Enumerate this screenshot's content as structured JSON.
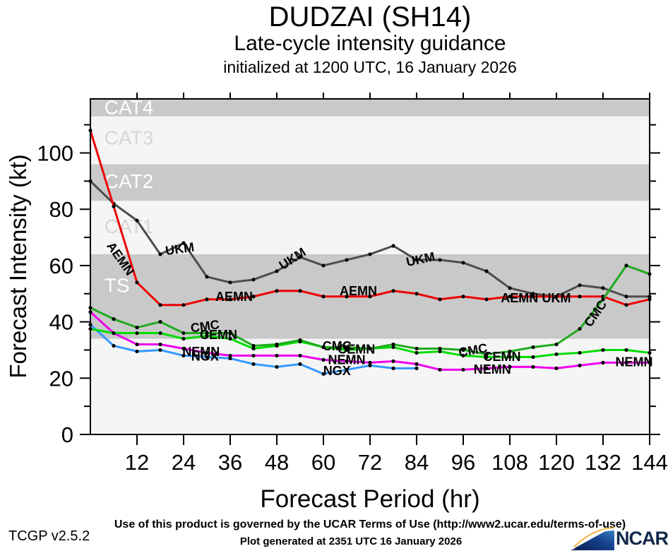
{
  "header": {
    "title": "DUDZAI (SH14)",
    "subtitle": "Late-cycle intensity guidance",
    "init_line": "initialized at 1200 UTC, 16 January 2026"
  },
  "chart_data": {
    "type": "line",
    "title": "DUDZAI (SH14) late-cycle intensity guidance",
    "xlabel": "Forecast Period (hr)",
    "ylabel": "Forecast Intensity (kt)",
    "xlim": [
      0,
      144
    ],
    "ylim": [
      0,
      119.2
    ],
    "x_ticks": [
      12,
      24,
      36,
      48,
      60,
      72,
      84,
      96,
      108,
      120,
      132,
      144
    ],
    "y_ticks_major": [
      0,
      20,
      40,
      60,
      80,
      100
    ],
    "y_ticks_minor": [
      10,
      30,
      50,
      70,
      90,
      110
    ],
    "grid": "off",
    "plot_bg": "#f5f5f5",
    "marker_color": "#000000",
    "bands": [
      {
        "label": "TS",
        "from": 34,
        "to": 64,
        "fill": "#c9c9c9",
        "label_color": "#ffffff",
        "label_y": 53
      },
      {
        "label": "CAT1",
        "from": 64,
        "to": 83,
        "fill": "#f5f5f5",
        "label_color": "#d6d6d6",
        "label_y": 74
      },
      {
        "label": "CAT2",
        "from": 83,
        "to": 96,
        "fill": "#c9c9c9",
        "label_color": "#ffffff",
        "label_y": 90
      },
      {
        "label": "CAT3",
        "from": 96,
        "to": 113,
        "fill": "#f5f5f5",
        "label_color": "#d6d6d6",
        "label_y": 105.5
      },
      {
        "label": "CAT4",
        "from": 113,
        "to": 119.2,
        "fill": "#c9c9c9",
        "label_color": "#ffffff",
        "label_y": 116.3
      }
    ],
    "x_hours": [
      0,
      6,
      12,
      18,
      24,
      30,
      36,
      42,
      48,
      54,
      60,
      66,
      72,
      78,
      84,
      90,
      96,
      102,
      108,
      114,
      120,
      126,
      132,
      138,
      144
    ],
    "series": [
      {
        "name": "UKM",
        "color": "#4d4d4d",
        "values": [
          90,
          82,
          76,
          64,
          68,
          56,
          54,
          55,
          58,
          63,
          60,
          62,
          64,
          67,
          62,
          62,
          61,
          58,
          52,
          50,
          49,
          53,
          52,
          49,
          49
        ]
      },
      {
        "name": "AEMN",
        "color": "#ee0000",
        "values": [
          108,
          81,
          54,
          46,
          46,
          48,
          48,
          49,
          51,
          51,
          49,
          49,
          49,
          51,
          50,
          48,
          49,
          48,
          49,
          49,
          49,
          49,
          49,
          46,
          48
        ]
      },
      {
        "name": "NGX",
        "color": "#3399ff",
        "values": [
          39,
          31.5,
          29.5,
          30,
          28,
          27.5,
          27,
          25,
          24,
          25,
          21.5,
          23,
          24.5,
          23.5,
          23.5,
          null,
          null,
          null,
          null,
          null,
          null,
          null,
          null,
          null,
          null
        ]
      },
      {
        "name": "NEMN",
        "color": "#ee00ee",
        "values": [
          43.5,
          36,
          32,
          32,
          30.5,
          29,
          28,
          28,
          28,
          28,
          26.5,
          26,
          25.5,
          26,
          25,
          23,
          23,
          23.5,
          24,
          24,
          23.5,
          24.5,
          25.5,
          25.5,
          25.5
        ]
      },
      {
        "name": "CEMN",
        "color": "#00dd00",
        "values": [
          37.5,
          36,
          36,
          36,
          34,
          35,
          34,
          30.5,
          31.5,
          33,
          31,
          30,
          30.5,
          31,
          29,
          29.5,
          28,
          27.5,
          27.5,
          27.5,
          28.5,
          29,
          30,
          30,
          29
        ]
      },
      {
        "name": "CMC",
        "color": "#1faa1f",
        "values": [
          45,
          41,
          38,
          40,
          36,
          36,
          36,
          31.5,
          32,
          33.5,
          31,
          31,
          30.5,
          32,
          30.5,
          30.5,
          30,
          28.5,
          29.5,
          31,
          32,
          37.5,
          48,
          60,
          57
        ]
      }
    ],
    "series_labels": [
      {
        "text": "AEMN",
        "hr": 7.8,
        "kt": 62.5,
        "rot": 55
      },
      {
        "text": "UKM",
        "hr": 23,
        "kt": 66,
        "rot": -8
      },
      {
        "text": "AEMN",
        "hr": 37,
        "kt": 49,
        "rot": 0
      },
      {
        "text": "CMC",
        "hr": 29.5,
        "kt": 38.5,
        "rot": -8
      },
      {
        "text": "CEMN",
        "hr": 33,
        "kt": 35.5,
        "rot": 0
      },
      {
        "text": "NEMN",
        "hr": 28.5,
        "kt": 29.5,
        "rot": 0
      },
      {
        "text": "NGX",
        "hr": 29.5,
        "kt": 27.8,
        "rot": 0
      },
      {
        "text": "UKM",
        "hr": 52,
        "kt": 62.5,
        "rot": -33
      },
      {
        "text": "AEMN",
        "hr": 69,
        "kt": 51,
        "rot": 0
      },
      {
        "text": "CMC",
        "hr": 63.5,
        "kt": 31.5,
        "rot": 0
      },
      {
        "text": "CEMN",
        "hr": 68.5,
        "kt": 30.3,
        "rot": 0
      },
      {
        "text": "NEMN",
        "hr": 66,
        "kt": 26.5,
        "rot": 0
      },
      {
        "text": "NGX",
        "hr": 63.5,
        "kt": 22.7,
        "rot": 0
      },
      {
        "text": "UKM",
        "hr": 85,
        "kt": 62.3,
        "rot": -12
      },
      {
        "text": "AEMN",
        "hr": 110.5,
        "kt": 48.5,
        "rot": 0
      },
      {
        "text": "UKM",
        "hr": 120,
        "kt": 48.5,
        "rot": 0
      },
      {
        "text": "CMC",
        "hr": 98.5,
        "kt": 30,
        "rot": -10
      },
      {
        "text": "CEMN",
        "hr": 106,
        "kt": 27.7,
        "rot": 0
      },
      {
        "text": "NEMN",
        "hr": 103.5,
        "kt": 23.2,
        "rot": 0
      },
      {
        "text": "CMC",
        "hr": 130,
        "kt": 43,
        "rot": -55
      },
      {
        "text": "NEMN",
        "hr": 140,
        "kt": 25.8,
        "rot": 0
      }
    ]
  },
  "footer": {
    "terms": "Use of this product is governed by the UCAR Terms of Use (http://www2.ucar.edu/terms-of-use)",
    "version": "TCGP v2.5.2",
    "generated": "Plot generated at 2351 UTC   16 January 2026",
    "logo_text": "NCAR"
  }
}
